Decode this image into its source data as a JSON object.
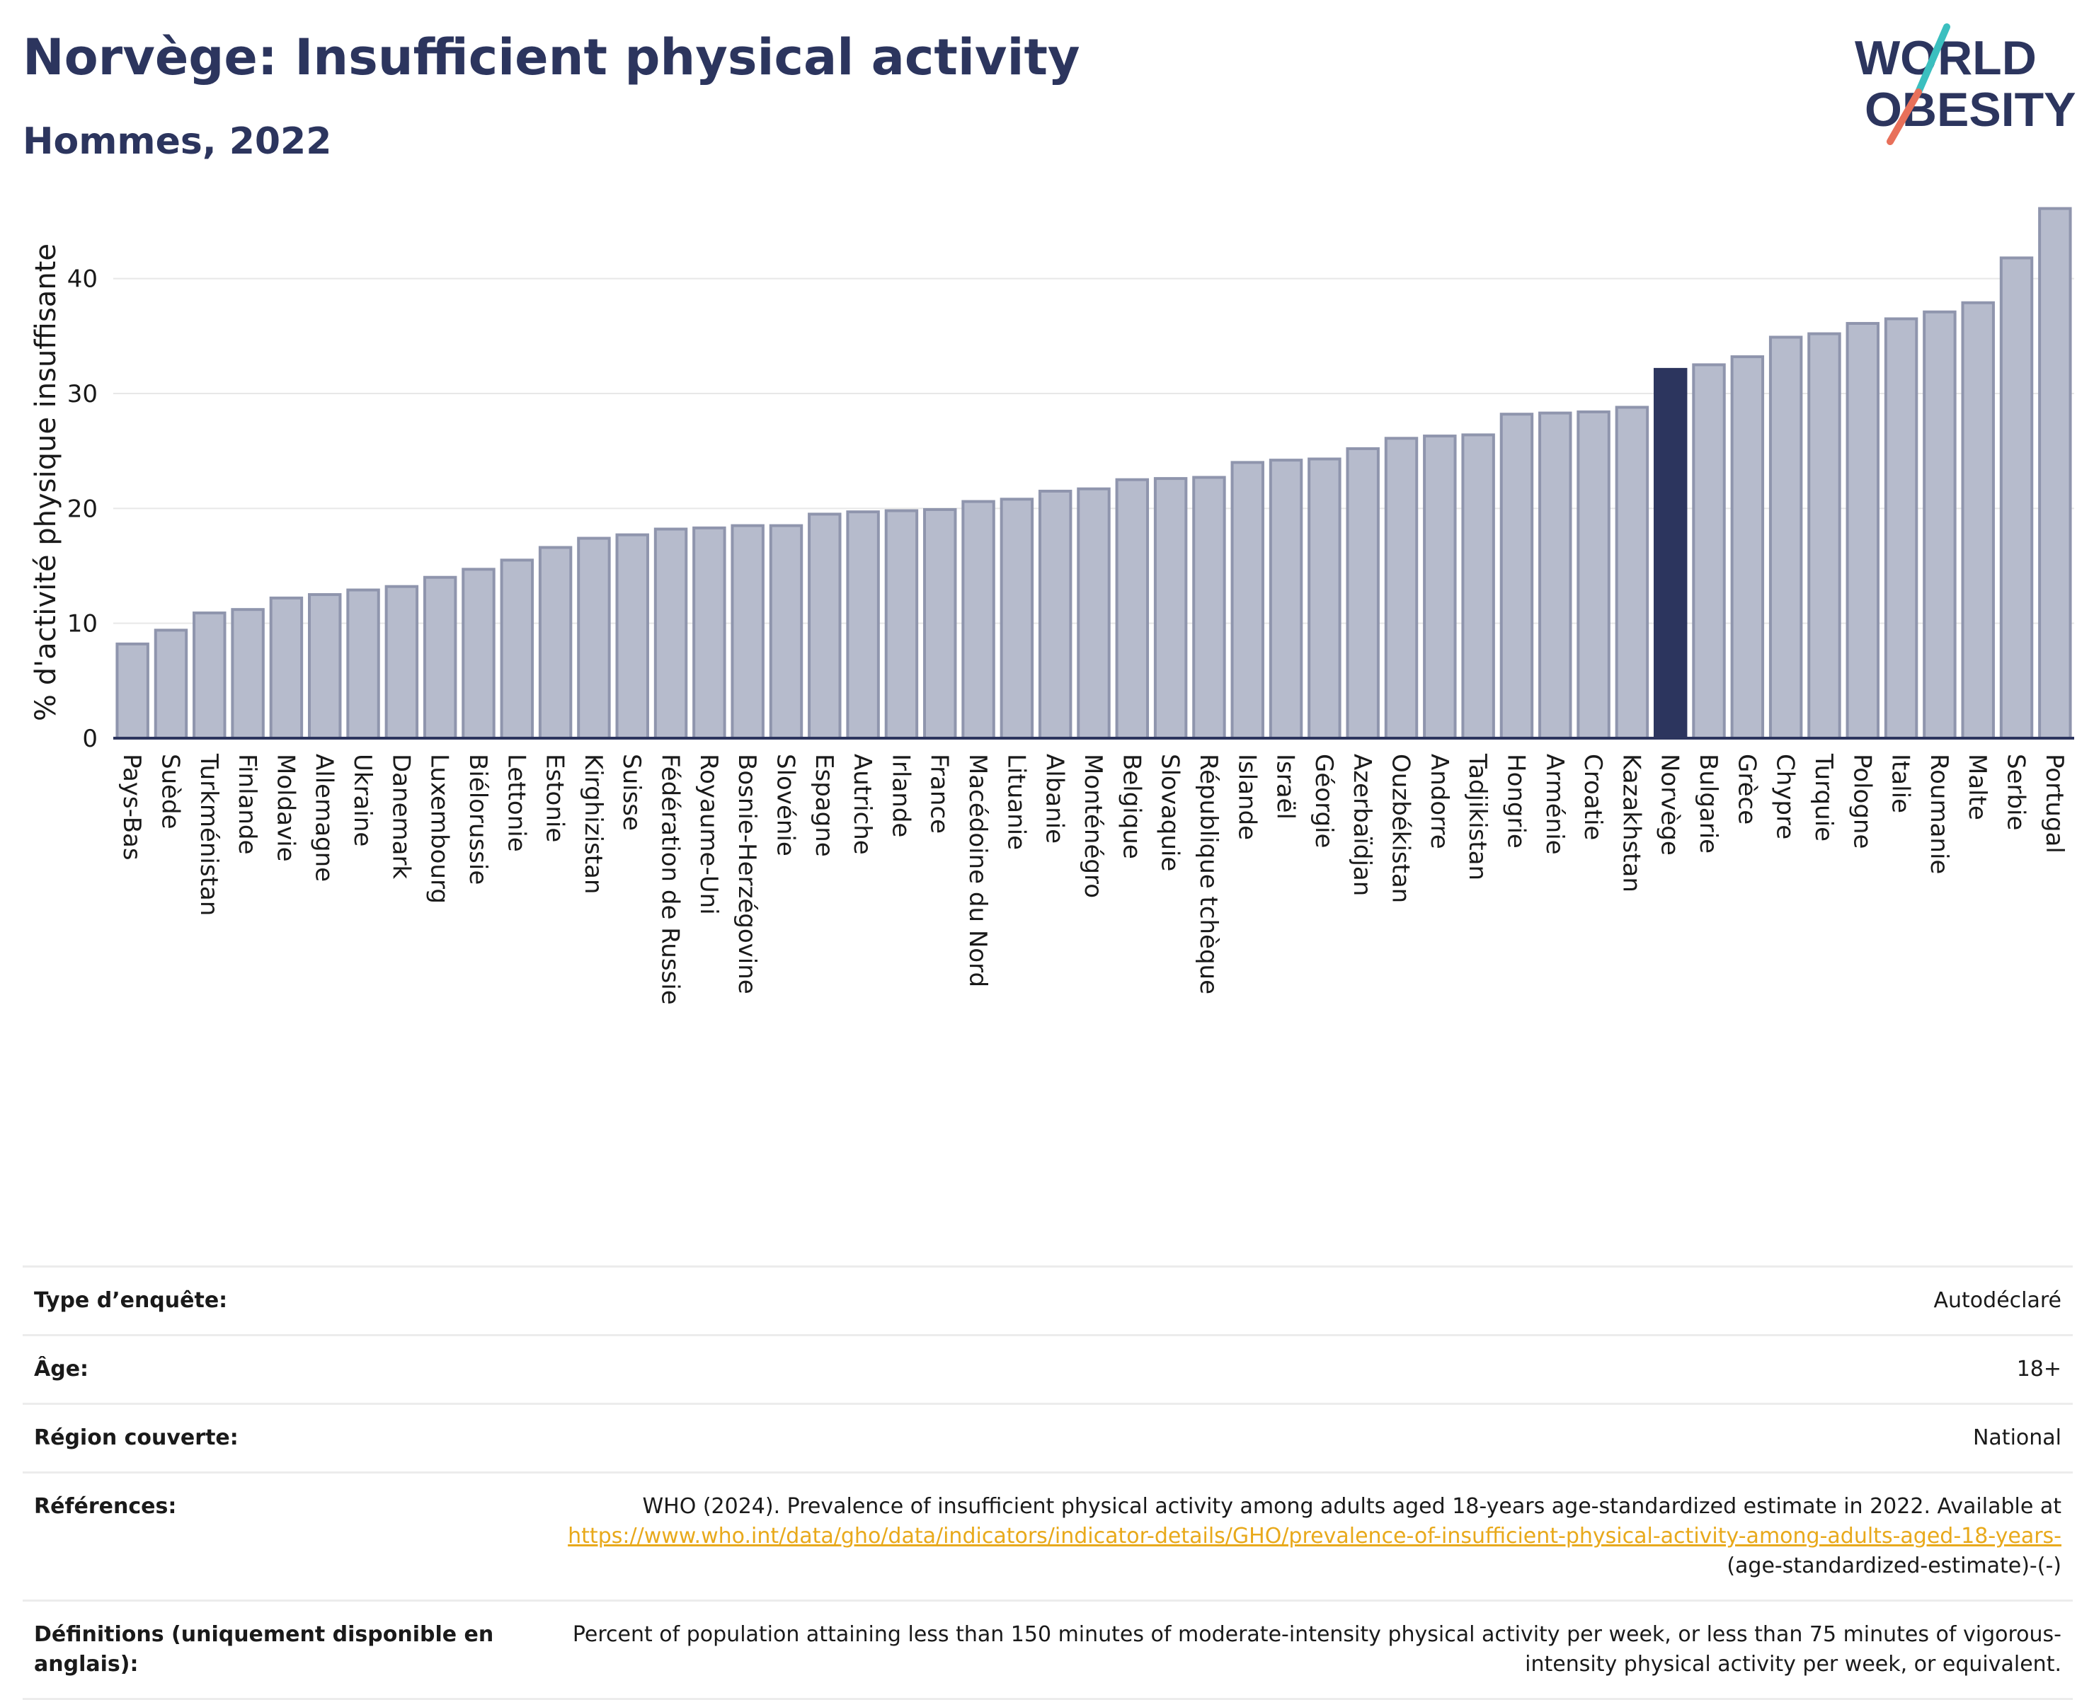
{
  "header": {
    "title": "Norvège: Insufficient physical activity",
    "subtitle": "Hommes, 2022",
    "logo_line1": "WORLD",
    "logo_line2": "OBESITY"
  },
  "colors": {
    "bar_default": "#b6bbcc",
    "bar_default_stroke": "#8f95ad",
    "bar_highlight": "#2c355e",
    "title": "#2c355e",
    "link": "#e8a91b",
    "logo_teal": "#3bbfbf",
    "logo_coral": "#e8705a"
  },
  "chart_data": {
    "type": "bar",
    "title": "",
    "xlabel": "",
    "ylabel": "% d'activité physique insuffisante",
    "ylim": [
      0,
      47
    ],
    "yticks": [
      0,
      10,
      20,
      30,
      40
    ],
    "grid": true,
    "highlight": "Norvège",
    "categories": [
      "Pays-Bas",
      "Suède",
      "Turkménistan",
      "Finlande",
      "Moldavie",
      "Allemagne",
      "Ukraine",
      "Danemark",
      "Luxembourg",
      "Biélorussie",
      "Lettonie",
      "Estonie",
      "Kirghizistan",
      "Suisse",
      "Fédération de Russie",
      "Royaume-Uni",
      "Bosnie-Herzégovine",
      "Slovénie",
      "Espagne",
      "Autriche",
      "Irlande",
      "France",
      "Macédoine du Nord",
      "Lituanie",
      "Albanie",
      "Monténégro",
      "Belgique",
      "Slovaquie",
      "République tchèque",
      "Islande",
      "Israël",
      "Géorgie",
      "Azerbaïdjan",
      "Ouzbékistan",
      "Andorre",
      "Tadjikistan",
      "Hongrie",
      "Arménie",
      "Croatie",
      "Kazakhstan",
      "Norvège",
      "Bulgarie",
      "Grèce",
      "Chypre",
      "Turquie",
      "Pologne",
      "Italie",
      "Roumanie",
      "Malte",
      "Serbie",
      "Portugal"
    ],
    "values": [
      8.2,
      9.4,
      10.9,
      11.2,
      12.2,
      12.5,
      12.9,
      13.2,
      14.0,
      14.7,
      15.5,
      16.6,
      17.4,
      17.7,
      18.2,
      18.3,
      18.5,
      18.5,
      19.5,
      19.7,
      19.8,
      19.9,
      20.6,
      20.8,
      21.5,
      21.7,
      22.5,
      22.6,
      22.7,
      24.0,
      24.2,
      24.3,
      25.2,
      26.1,
      26.3,
      26.4,
      28.2,
      28.3,
      28.4,
      28.8,
      32.1,
      32.5,
      33.2,
      34.9,
      35.2,
      36.1,
      36.5,
      37.1,
      37.9,
      41.8,
      46.1
    ]
  },
  "info_table": {
    "survey_type_label": "Type d’enquête:",
    "survey_type_value": "Autodéclaré",
    "age_label": "Âge:",
    "age_value": "18+",
    "region_label": "Région couverte:",
    "region_value": "National",
    "references_label": "Références:",
    "references_text": "WHO (2024). Prevalence of insufficient physical activity among adults aged 18-years age-standardized estimate in 2022. Available at",
    "references_link": "https://www.who.int/data/gho/data/indicators/indicator-details/GHO/prevalence-of-insufficient-physical-activity-among-adults-aged-18-years-",
    "references_suffix": "(age-standardized-estimate)-(-)",
    "definitions_label": "Définitions (uniquement disponible en anglais):",
    "definitions_text": "Percent of population attaining less than 150 minutes of moderate-intensity physical activity per week, or less than 75 minutes of vigorous-intensity physical activity per week, or equivalent."
  }
}
